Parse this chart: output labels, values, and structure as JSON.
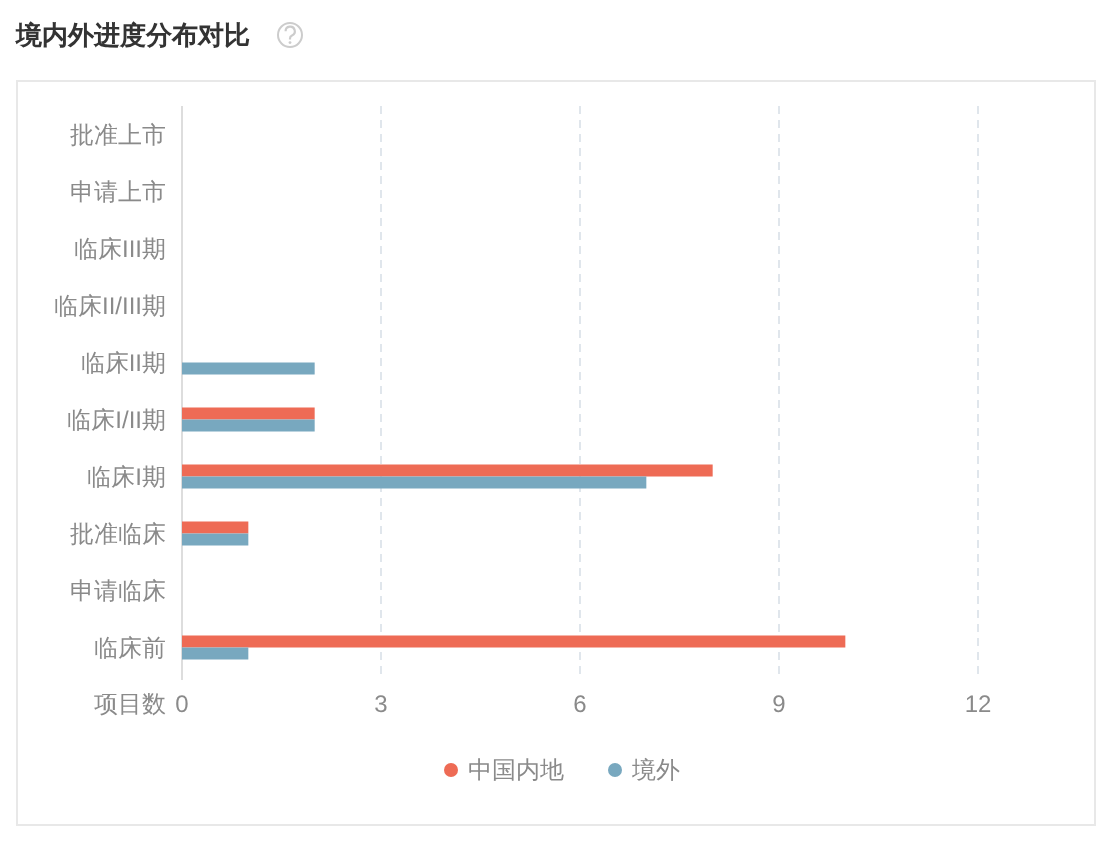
{
  "chart_data": {
    "type": "bar",
    "orientation": "horizontal",
    "title": "境内外进度分布对比",
    "xlabel": "项目数",
    "categories": [
      "批准上市",
      "申请上市",
      "临床III期",
      "临床II/III期",
      "临床II期",
      "临床I/II期",
      "临床I期",
      "批准临床",
      "申请临床",
      "临床前"
    ],
    "series": [
      {
        "name": "中国内地",
        "color": "#ee6b55",
        "values": [
          0,
          0,
          0,
          0,
          0,
          2,
          8,
          1,
          0,
          10
        ]
      },
      {
        "name": "境外",
        "color": "#78a8bf",
        "values": [
          0,
          0,
          0,
          0,
          2,
          2,
          7,
          1,
          0,
          1
        ]
      }
    ],
    "xlim": [
      0,
      12
    ],
    "xticks": [
      0,
      3,
      6,
      9,
      12
    ],
    "grid": "x",
    "legend": "bottom"
  }
}
